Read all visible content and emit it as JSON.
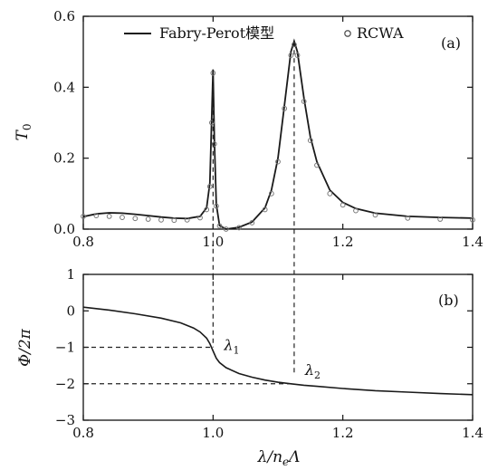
{
  "chart_data": [
    {
      "type": "line",
      "panel_label": "(a)",
      "ylabel": "T",
      "ylabel_sub": "0",
      "xlim": [
        0.8,
        1.4
      ],
      "ylim": [
        0.0,
        0.6
      ],
      "x_ticks": [
        "0.8",
        "1.0",
        "1.2",
        "1.4"
      ],
      "y_ticks": [
        "0.0",
        "0.2",
        "0.4",
        "0.6"
      ],
      "legend_placement": "top-center",
      "series": [
        {
          "name": "Fabry-Perot模型",
          "style": "solid-line",
          "color": "#1a1a1a",
          "x": [
            0.8,
            0.82,
            0.84,
            0.86,
            0.88,
            0.9,
            0.92,
            0.94,
            0.96,
            0.98,
            0.99,
            0.995,
            0.998,
            1.0,
            1.002,
            1.005,
            1.01,
            1.02,
            1.04,
            1.06,
            1.08,
            1.09,
            1.1,
            1.11,
            1.12,
            1.125,
            1.13,
            1.14,
            1.15,
            1.16,
            1.18,
            1.2,
            1.22,
            1.25,
            1.3,
            1.35,
            1.4
          ],
          "y": [
            0.035,
            0.043,
            0.046,
            0.045,
            0.042,
            0.038,
            0.034,
            0.031,
            0.03,
            0.036,
            0.06,
            0.13,
            0.32,
            0.45,
            0.25,
            0.07,
            0.01,
            0.0,
            0.005,
            0.02,
            0.06,
            0.11,
            0.2,
            0.35,
            0.5,
            0.53,
            0.5,
            0.37,
            0.26,
            0.19,
            0.11,
            0.075,
            0.058,
            0.045,
            0.036,
            0.033,
            0.031
          ]
        },
        {
          "name": "RCWA",
          "style": "open-circle-markers",
          "color": "#777777",
          "x": [
            0.8,
            0.82,
            0.84,
            0.86,
            0.88,
            0.9,
            0.92,
            0.94,
            0.96,
            0.98,
            0.99,
            0.995,
            0.998,
            1.0,
            1.002,
            1.005,
            1.01,
            1.02,
            1.04,
            1.06,
            1.08,
            1.09,
            1.1,
            1.11,
            1.12,
            1.125,
            1.13,
            1.14,
            1.15,
            1.16,
            1.18,
            1.2,
            1.22,
            1.25,
            1.3,
            1.35,
            1.4
          ],
          "y": [
            0.036,
            0.038,
            0.036,
            0.033,
            0.03,
            0.028,
            0.026,
            0.025,
            0.026,
            0.032,
            0.055,
            0.12,
            0.3,
            0.44,
            0.24,
            0.065,
            0.009,
            0.0,
            0.004,
            0.018,
            0.055,
            0.1,
            0.19,
            0.34,
            0.49,
            0.52,
            0.49,
            0.36,
            0.25,
            0.18,
            0.1,
            0.068,
            0.052,
            0.04,
            0.031,
            0.028,
            0.026
          ]
        }
      ]
    },
    {
      "type": "line",
      "panel_label": "(b)",
      "ylabel": "Φ/2π",
      "xlabel": "λ/n",
      "xlabel_sub": "e",
      "xlabel_tail": "Λ",
      "xlim": [
        0.8,
        1.4
      ],
      "ylim": [
        -3,
        1
      ],
      "x_ticks": [
        "0.8",
        "1.0",
        "1.2",
        "1.4"
      ],
      "y_ticks": [
        "1",
        "0",
        "−1",
        "−2",
        "−3"
      ],
      "series": [
        {
          "name": "",
          "style": "solid-line",
          "color": "#1a1a1a",
          "x": [
            0.8,
            0.84,
            0.88,
            0.92,
            0.95,
            0.97,
            0.98,
            0.99,
            0.995,
            1.0,
            1.005,
            1.01,
            1.02,
            1.04,
            1.06,
            1.08,
            1.1,
            1.12,
            1.14,
            1.16,
            1.2,
            1.25,
            1.3,
            1.35,
            1.4
          ],
          "y": [
            0.1,
            0.02,
            -0.08,
            -0.2,
            -0.33,
            -0.47,
            -0.58,
            -0.75,
            -0.9,
            -1.1,
            -1.3,
            -1.42,
            -1.56,
            -1.72,
            -1.82,
            -1.9,
            -1.96,
            -2.0,
            -2.04,
            -2.07,
            -2.13,
            -2.19,
            -2.23,
            -2.27,
            -2.3
          ]
        }
      ],
      "annotations": [
        {
          "symbol": "λ",
          "sub": "1",
          "x": 1.0,
          "y": -1
        },
        {
          "symbol": "λ",
          "sub": "2",
          "x": 1.125,
          "y": -2
        }
      ]
    }
  ]
}
